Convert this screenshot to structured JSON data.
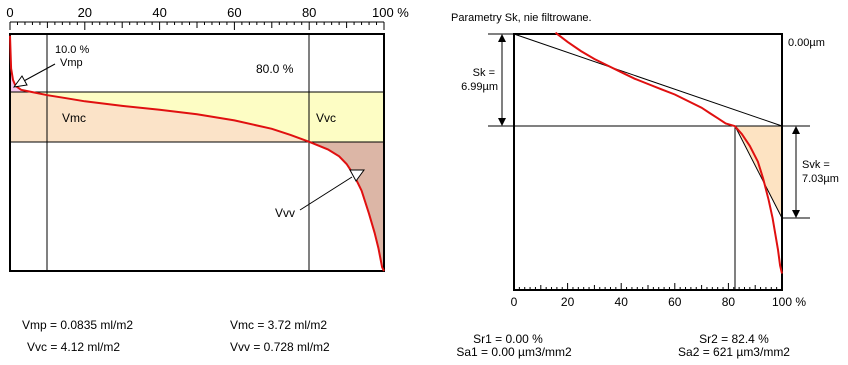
{
  "colors": {
    "curve": "#e01010",
    "vmp_fill": "#f6c8ee",
    "vmc_fill": "#fbe3c8",
    "vvc_fill": "#fdfdc4",
    "vvv_fill": "#dcb6a6",
    "svk_fill": "#fde3c2"
  },
  "chart_data": [
    {
      "type": "area",
      "ylabel": "",
      "xlabel": "",
      "xlim": [
        0,
        100
      ],
      "x_ticks": [
        "0",
        "20",
        "40",
        "60",
        "80",
        "100 %"
      ],
      "x_tick_values": [
        0,
        20,
        40,
        60,
        80,
        100
      ],
      "series": [
        {
          "x": [
            0,
            0.3,
            0.8,
            1.5,
            3,
            6,
            10,
            15,
            20,
            30,
            40,
            50,
            60,
            70,
            75,
            80,
            85,
            88,
            90,
            92,
            94,
            96,
            97.5,
            98.5,
            99.5,
            100
          ],
          "y": [
            0.22,
            4.5,
            6.0,
            6.8,
            7.3,
            7.6,
            8.0,
            8.4,
            8.8,
            9.4,
            9.9,
            10.5,
            11.3,
            12.4,
            13.2,
            14.1,
            15.1,
            16.0,
            17.0,
            18.5,
            20.5,
            23.5,
            26.0,
            28.0,
            30.5,
            31.0
          ]
        }
      ],
      "annotations": {
        "mr1_label": "10.0 %",
        "mr2_label": "80.0 %",
        "vmp": "Vmp",
        "vmc": "Vmc",
        "vvc": "Vvc",
        "vvv": "Vvv"
      }
    },
    {
      "type": "line",
      "title": "Parametry Sk, nie filtrowane.",
      "xlim": [
        0,
        100
      ],
      "x_ticks": [
        "0",
        "20",
        "40",
        "60",
        "80",
        "100 %"
      ],
      "x_tick_values": [
        0,
        20,
        40,
        60,
        80,
        100
      ],
      "series": [
        {
          "x": [
            15.5,
            20,
            25,
            30,
            35,
            40,
            45,
            50,
            55,
            60,
            65,
            70,
            73,
            76,
            79,
            82.4,
            85,
            88,
            91,
            93,
            95,
            96.5,
            97.5,
            98.5,
            99.3,
            100
          ],
          "y": [
            -0.1,
            0.6,
            1.3,
            1.9,
            2.4,
            2.9,
            3.4,
            3.8,
            4.2,
            4.6,
            5.1,
            5.6,
            6.0,
            6.4,
            6.8,
            7.0,
            7.6,
            8.5,
            9.7,
            11.0,
            12.6,
            14.0,
            15.2,
            16.4,
            17.6,
            18.2
          ]
        }
      ],
      "sk_label": "Sk =",
      "sk_value": "6.99µm",
      "svk_label": "Svk =",
      "svk_value": "7.03µm",
      "top_value": "0.00µm"
    }
  ],
  "results_left": {
    "vmp": "Vmp = 0.0835 ml/m2",
    "vmc": "Vmc = 3.72 ml/m2",
    "vvc": "Vvc = 4.12 ml/m2",
    "vvv": "Vvv = 0.728 ml/m2"
  },
  "results_right": {
    "sr1": "Sr1 = 0.00 %",
    "sa1": "Sa1 = 0.00 µm3/mm2",
    "sr2": "Sr2 = 82.4 %",
    "sa2": "Sa2 = 621 µm3/mm2"
  }
}
